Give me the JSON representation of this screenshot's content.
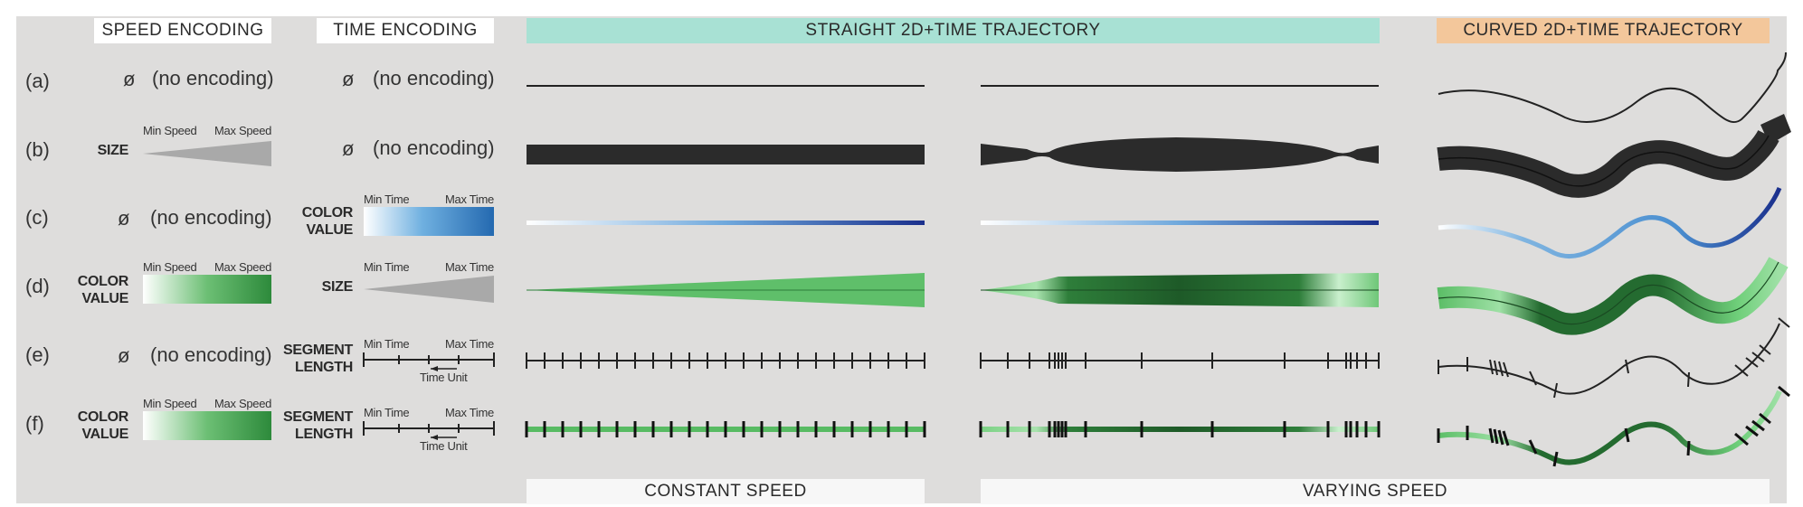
{
  "headers": {
    "speed_encoding": "SPEED ENCODING",
    "time_encoding": "TIME ENCODING",
    "straight": "STRAIGHT 2D+TIME TRAJECTORY",
    "curved": "CURVED 2D+TIME TRAJECTORY"
  },
  "footers": {
    "constant": "CONSTANT SPEED",
    "varying": "VARYING SPEED"
  },
  "rows": [
    {
      "label": "(a)",
      "speed_symbol": "ø",
      "speed_text": "(no encoding)",
      "time_symbol": "ø",
      "time_text": "(no encoding)"
    },
    {
      "label": "(b)",
      "speed_enc": "SIZE",
      "speed_min": "Min Speed",
      "speed_max": "Max Speed",
      "time_symbol": "ø",
      "time_text": "(no encoding)"
    },
    {
      "label": "(c)",
      "speed_symbol": "ø",
      "speed_text": "(no encoding)",
      "time_enc": [
        "COLOR",
        "VALUE"
      ],
      "time_min": "Min Time",
      "time_max": "Max Time"
    },
    {
      "label": "(d)",
      "speed_enc": [
        "COLOR",
        "VALUE"
      ],
      "speed_min": "Min Speed",
      "speed_max": "Max Speed",
      "time_enc": "SIZE",
      "time_min": "Min Time",
      "time_max": "Max Time"
    },
    {
      "label": "(e)",
      "speed_symbol": "ø",
      "speed_text": "(no encoding)",
      "time_enc": [
        "SEGMENT",
        "LENGTH"
      ],
      "time_min": "Min Time",
      "time_max": "Max Time",
      "time_unit": "Time Unit"
    },
    {
      "label": "(f)",
      "speed_enc": [
        "COLOR",
        "VALUE"
      ],
      "speed_min": "Min Speed",
      "speed_max": "Max Speed",
      "time_enc": [
        "SEGMENT",
        "LENGTH"
      ],
      "time_min": "Min Time",
      "time_max": "Max Time",
      "time_unit": "Time Unit"
    }
  ],
  "colors": {
    "background": "#dedddc",
    "teal_header": "#a8e1d4",
    "orange_header": "#f3c79b",
    "dark_band": "#2b2b2b",
    "gray_wedge": "#a9a9a9",
    "green_light": "#63c06e",
    "green_dark": "#1f6e2d",
    "blue_light": "#6fb0e0",
    "blue_dark": "#1a2f8c"
  }
}
